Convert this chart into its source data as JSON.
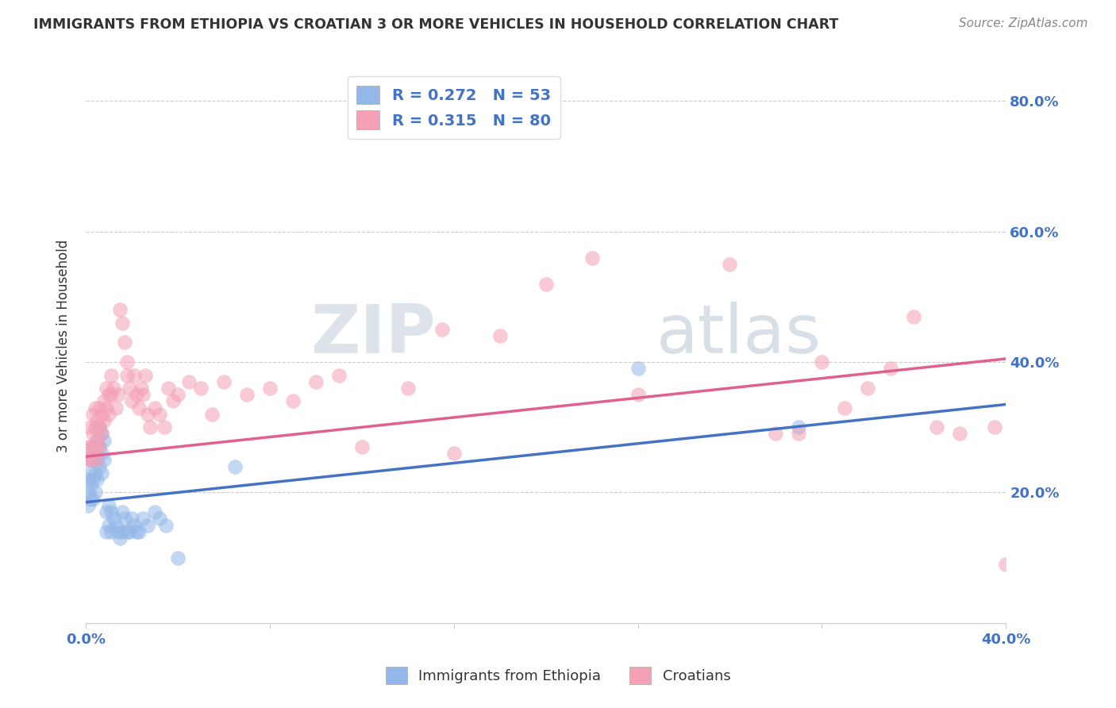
{
  "title": "IMMIGRANTS FROM ETHIOPIA VS CROATIAN 3 OR MORE VEHICLES IN HOUSEHOLD CORRELATION CHART",
  "source": "Source: ZipAtlas.com",
  "ylabel": "3 or more Vehicles in Household",
  "legend_label1": "Immigrants from Ethiopia",
  "legend_label2": "Croatians",
  "R1": 0.272,
  "N1": 53,
  "R2": 0.315,
  "N2": 80,
  "xmin": 0.0,
  "xmax": 0.4,
  "ymin": 0.0,
  "ymax": 0.85,
  "yticks": [
    0.2,
    0.4,
    0.6,
    0.8
  ],
  "ytick_labels": [
    "20.0%",
    "40.0%",
    "60.0%",
    "80.0%"
  ],
  "xticks": [
    0.0,
    0.08,
    0.16,
    0.24,
    0.32,
    0.4
  ],
  "color1": "#93b7e8",
  "color2": "#f4a0b5",
  "line_color1": "#4472c4",
  "line_color2": "#e06090",
  "title_color": "#333333",
  "source_color": "#888888",
  "background_color": "#ffffff",
  "ethiopia_x": [
    0.001,
    0.001,
    0.001,
    0.002,
    0.002,
    0.002,
    0.002,
    0.003,
    0.003,
    0.003,
    0.003,
    0.004,
    0.004,
    0.004,
    0.005,
    0.005,
    0.005,
    0.006,
    0.006,
    0.006,
    0.007,
    0.007,
    0.007,
    0.008,
    0.008,
    0.009,
    0.009,
    0.01,
    0.01,
    0.011,
    0.011,
    0.012,
    0.013,
    0.014,
    0.015,
    0.016,
    0.016,
    0.017,
    0.018,
    0.019,
    0.02,
    0.021,
    0.022,
    0.023,
    0.025,
    0.027,
    0.03,
    0.032,
    0.035,
    0.04,
    0.065,
    0.24,
    0.31
  ],
  "ethiopia_y": [
    0.22,
    0.2,
    0.18,
    0.25,
    0.23,
    0.21,
    0.19,
    0.27,
    0.25,
    0.22,
    0.19,
    0.26,
    0.23,
    0.2,
    0.28,
    0.25,
    0.22,
    0.3,
    0.27,
    0.24,
    0.29,
    0.26,
    0.23,
    0.28,
    0.25,
    0.17,
    0.14,
    0.18,
    0.15,
    0.17,
    0.14,
    0.16,
    0.15,
    0.14,
    0.13,
    0.17,
    0.14,
    0.16,
    0.14,
    0.14,
    0.16,
    0.15,
    0.14,
    0.14,
    0.16,
    0.15,
    0.17,
    0.16,
    0.15,
    0.1,
    0.24,
    0.39,
    0.3
  ],
  "croatian_x": [
    0.001,
    0.001,
    0.002,
    0.002,
    0.002,
    0.003,
    0.003,
    0.003,
    0.004,
    0.004,
    0.004,
    0.005,
    0.005,
    0.005,
    0.006,
    0.006,
    0.006,
    0.007,
    0.007,
    0.008,
    0.008,
    0.009,
    0.009,
    0.01,
    0.01,
    0.011,
    0.011,
    0.012,
    0.013,
    0.014,
    0.015,
    0.016,
    0.017,
    0.018,
    0.018,
    0.019,
    0.02,
    0.021,
    0.022,
    0.023,
    0.024,
    0.025,
    0.026,
    0.027,
    0.028,
    0.03,
    0.032,
    0.034,
    0.036,
    0.038,
    0.04,
    0.045,
    0.05,
    0.055,
    0.06,
    0.07,
    0.08,
    0.09,
    0.1,
    0.11,
    0.12,
    0.14,
    0.155,
    0.16,
    0.18,
    0.2,
    0.22,
    0.24,
    0.28,
    0.3,
    0.31,
    0.32,
    0.33,
    0.34,
    0.35,
    0.36,
    0.37,
    0.38,
    0.395,
    0.4
  ],
  "croatian_y": [
    0.27,
    0.25,
    0.3,
    0.27,
    0.25,
    0.32,
    0.29,
    0.26,
    0.33,
    0.3,
    0.27,
    0.31,
    0.28,
    0.25,
    0.33,
    0.3,
    0.27,
    0.32,
    0.29,
    0.34,
    0.31,
    0.36,
    0.33,
    0.35,
    0.32,
    0.38,
    0.35,
    0.36,
    0.33,
    0.35,
    0.48,
    0.46,
    0.43,
    0.4,
    0.38,
    0.36,
    0.34,
    0.38,
    0.35,
    0.33,
    0.36,
    0.35,
    0.38,
    0.32,
    0.3,
    0.33,
    0.32,
    0.3,
    0.36,
    0.34,
    0.35,
    0.37,
    0.36,
    0.32,
    0.37,
    0.35,
    0.36,
    0.34,
    0.37,
    0.38,
    0.27,
    0.36,
    0.45,
    0.26,
    0.44,
    0.52,
    0.56,
    0.35,
    0.55,
    0.29,
    0.29,
    0.4,
    0.33,
    0.36,
    0.39,
    0.47,
    0.3,
    0.29,
    0.3,
    0.09
  ],
  "blue_line_y0": 0.185,
  "blue_line_y1": 0.335,
  "pink_line_y0": 0.255,
  "pink_line_y1": 0.405
}
